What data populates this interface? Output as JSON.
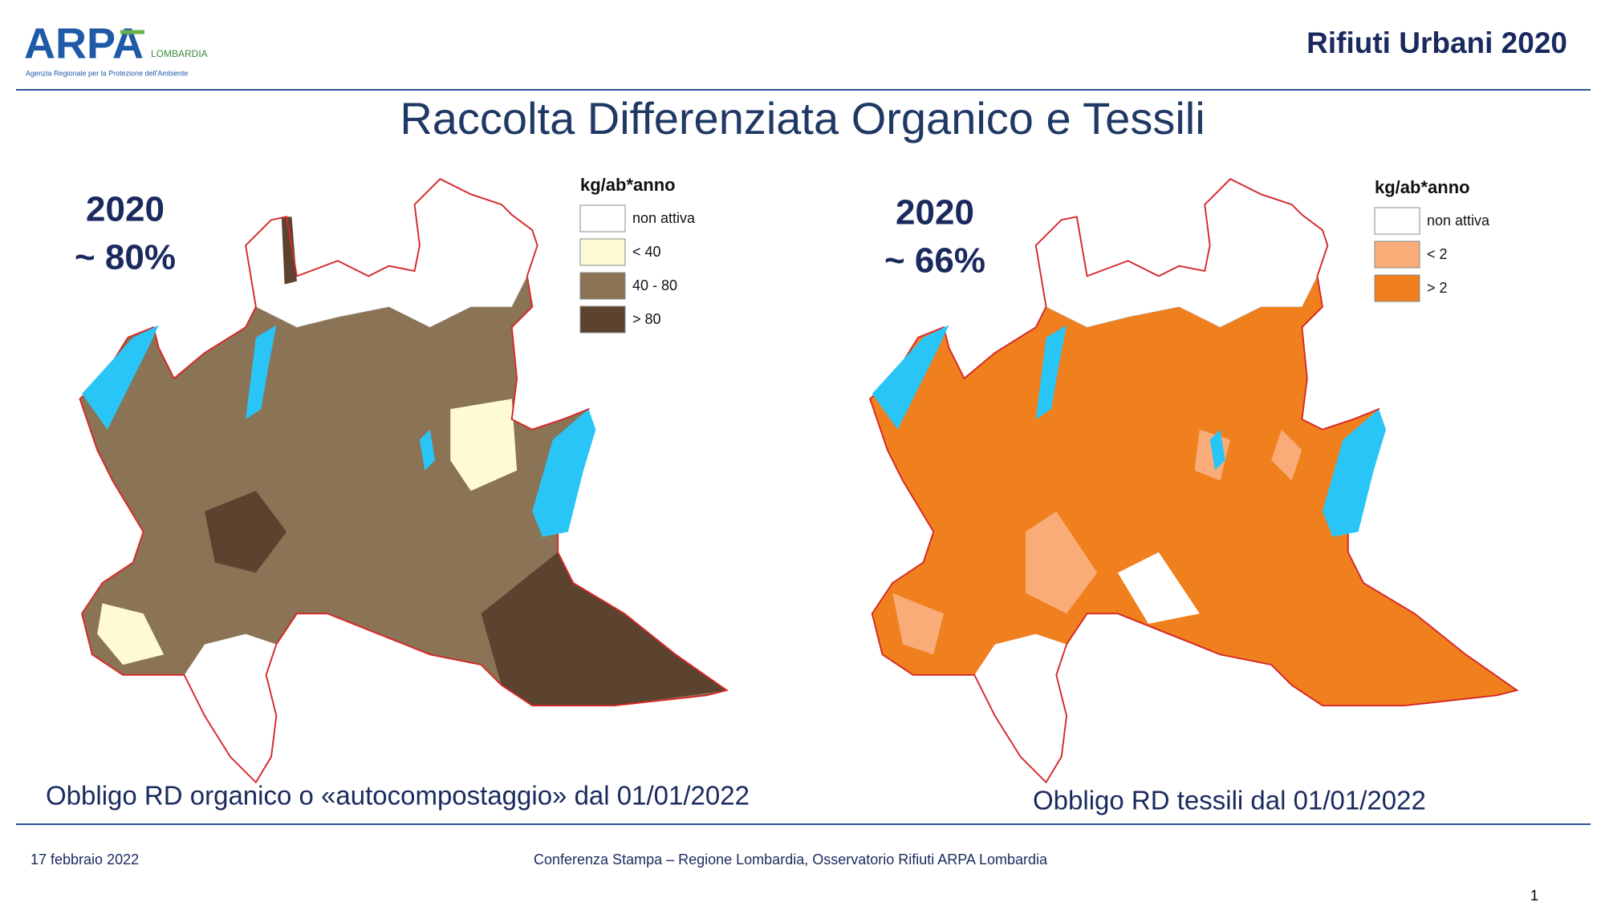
{
  "header": {
    "logo_name": "ARPA",
    "logo_region": "LOMBARDIA",
    "logo_tagline": "Agenzia Regionale per la Protezione dell'Ambiente",
    "topic": "Rifiuti Urbani 2020"
  },
  "title": "Raccolta Differenziata Organico e Tessili",
  "maps": [
    {
      "year": "2020",
      "share": "~ 80%",
      "legend_title": "kg/ab*anno",
      "legend": [
        {
          "label": "non attiva",
          "color": "#ffffff"
        },
        {
          "label": "< 40",
          "color": "#fffad6"
        },
        {
          "label": "40 - 80",
          "color": "#8b7355"
        },
        {
          "label": "> 80",
          "color": "#5c4330"
        }
      ],
      "caption": "Obbligo RD organico o «autocompostaggio» dal  01/01/2022"
    },
    {
      "year": "2020",
      "share": "~ 66%",
      "legend_title": "kg/ab*anno",
      "legend": [
        {
          "label": "non attiva",
          "color": "#ffffff"
        },
        {
          "label": "< 2",
          "color": "#f9ab78"
        },
        {
          "label": "> 2",
          "color": "#f07f1e"
        }
      ],
      "caption": "Obbligo RD tessili dal 01/01/2022"
    }
  ],
  "footer": {
    "date": "17 febbraio 2022",
    "event": "Conferenza Stampa – Regione Lombardia, Osservatorio Rifiuti  ARPA Lombardia",
    "page": "1"
  }
}
